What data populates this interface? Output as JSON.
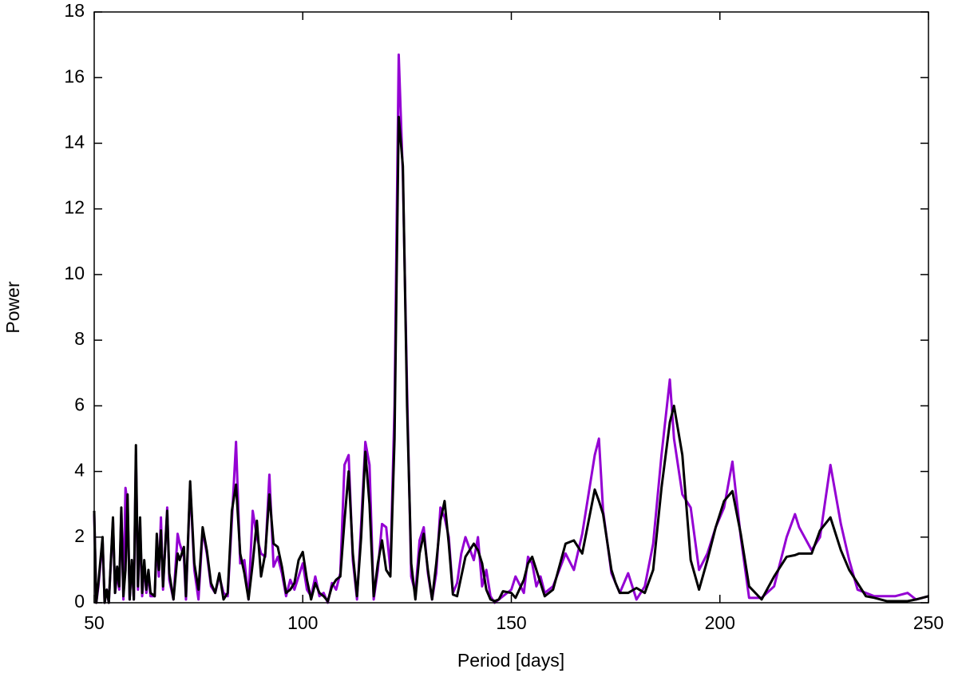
{
  "chart_data": {
    "type": "line",
    "xlabel": "Period [days]",
    "ylabel": "Power",
    "xlim": [
      50,
      250
    ],
    "ylim": [
      0,
      18
    ],
    "xticks": [
      50,
      100,
      150,
      200,
      250
    ],
    "yticks": [
      0,
      2,
      4,
      6,
      8,
      10,
      12,
      14,
      16,
      18
    ],
    "grid": false,
    "x": [
      50,
      50.5,
      51,
      52,
      52.5,
      53,
      53.5,
      54.5,
      55,
      55.5,
      56,
      56.5,
      57,
      57.5,
      58,
      58.5,
      59,
      59.5,
      60,
      60.5,
      61,
      61.5,
      62,
      62.5,
      63,
      63.5,
      64.5,
      65,
      65.5,
      66,
      66.5,
      67.5,
      68,
      69,
      70,
      70.5,
      71.5,
      72,
      73,
      74,
      75,
      76,
      77,
      78,
      79,
      80,
      81,
      82,
      83,
      84,
      85,
      86,
      87,
      88,
      89,
      90,
      91,
      92,
      93,
      94,
      95,
      96,
      97,
      98,
      99,
      100,
      101,
      102,
      103,
      104,
      105,
      106,
      107,
      108,
      109,
      110,
      111,
      112,
      113,
      114,
      115,
      116,
      117,
      118,
      119,
      120,
      121,
      122,
      123,
      124,
      125,
      126,
      127,
      128,
      129,
      130,
      131,
      132,
      133,
      134,
      135,
      136,
      137,
      138,
      139,
      141,
      142,
      143,
      144,
      145,
      146,
      147,
      148,
      150,
      151,
      153,
      154,
      155,
      156,
      157,
      158,
      160,
      163,
      165,
      167,
      170,
      171,
      172,
      174,
      175,
      176,
      178,
      180,
      182,
      184,
      186,
      188,
      189,
      191,
      193,
      195,
      197,
      199,
      201,
      203,
      205,
      207,
      210,
      213,
      216,
      218,
      219,
      222,
      224,
      226.5,
      229,
      231,
      233,
      235,
      237,
      240,
      242,
      245,
      247,
      250
    ],
    "series": [
      {
        "color": "#9400d3",
        "values": [
          2.7,
          0,
          0.5,
          1.9,
          0,
          0.4,
          0,
          2.5,
          0.3,
          0.9,
          0.4,
          2.8,
          0.1,
          3.5,
          3.0,
          0.1,
          1.2,
          0.1,
          4.5,
          0.4,
          2.4,
          0.2,
          1.2,
          0.3,
          0.9,
          0.2,
          0.2,
          1.9,
          0.8,
          2.6,
          0.4,
          2.9,
          0.7,
          0.1,
          2.1,
          1.8,
          1.4,
          0.1,
          3.6,
          1.0,
          0.1,
          2.2,
          1.5,
          0.5,
          0.3,
          0.8,
          0.3,
          0.2,
          2.5,
          4.9,
          1.2,
          1.3,
          0.1,
          2.8,
          2.0,
          1.5,
          1.4,
          3.9,
          1.1,
          1.4,
          0.9,
          0.2,
          0.7,
          0.4,
          0.8,
          1.2,
          0.4,
          0.2,
          0.8,
          0.2,
          0.3,
          0.0,
          0.6,
          0.4,
          0.9,
          4.2,
          4.5,
          1.3,
          0.1,
          2.4,
          4.9,
          4.2,
          0.1,
          1.0,
          2.4,
          2.3,
          1.0,
          6.0,
          16.7,
          13.0,
          6.5,
          0.8,
          0.3,
          1.9,
          2.3,
          0.9,
          0.1,
          0.9,
          2.9,
          2.6,
          2.0,
          0.3,
          0.6,
          1.5,
          2.0,
          1.3,
          2.0,
          0.5,
          1.0,
          0.2,
          0.0,
          0.1,
          0.2,
          0.4,
          0.8,
          0.3,
          1.4,
          1.2,
          0.5,
          0.8,
          0.3,
          0.5,
          1.5,
          1.0,
          2.1,
          4.5,
          5.0,
          2.8,
          0.9,
          0.6,
          0.3,
          0.9,
          0.1,
          0.5,
          1.8,
          4.5,
          6.8,
          5.0,
          3.3,
          2.9,
          1.0,
          1.5,
          2.3,
          2.9,
          4.3,
          2.0,
          0.15,
          0.15,
          0.5,
          2.0,
          2.7,
          2.3,
          1.6,
          2.0,
          4.2,
          2.4,
          1.3,
          0.4,
          0.3,
          0.2,
          0.2,
          0.2,
          0.3,
          0.1,
          0.2
        ]
      },
      {
        "color": "#000000",
        "values": [
          2.8,
          0,
          0.6,
          2.0,
          0,
          0.4,
          0,
          2.6,
          0.3,
          1.1,
          0.5,
          2.9,
          0.2,
          1.0,
          3.3,
          0.1,
          1.3,
          0.1,
          4.8,
          0.5,
          2.6,
          0.3,
          1.3,
          0.4,
          1.0,
          0.3,
          0.2,
          2.1,
          1.0,
          2.2,
          0.5,
          2.8,
          0.9,
          0.1,
          1.5,
          1.3,
          1.7,
          0.2,
          3.7,
          1.2,
          0.4,
          2.3,
          1.6,
          0.6,
          0.3,
          0.9,
          0.1,
          0.3,
          2.8,
          3.6,
          1.5,
          0.9,
          0.1,
          1.2,
          2.5,
          0.8,
          1.5,
          3.3,
          1.8,
          1.7,
          1.1,
          0.3,
          0.4,
          0.6,
          1.3,
          1.55,
          0.7,
          0.1,
          0.6,
          0.3,
          0.2,
          0.05,
          0.5,
          0.7,
          0.8,
          2.5,
          4.0,
          1.5,
          0.2,
          2.0,
          4.6,
          3.0,
          0.2,
          1.2,
          1.9,
          1.0,
          0.8,
          5.0,
          14.8,
          13.3,
          6.0,
          1.2,
          0.1,
          1.5,
          2.1,
          1.0,
          0.1,
          1.2,
          2.5,
          3.1,
          1.8,
          0.25,
          0.2,
          0.8,
          1.4,
          1.8,
          1.6,
          1.2,
          0.4,
          0.1,
          0.05,
          0.1,
          0.35,
          0.3,
          0.15,
          0.7,
          1.2,
          1.4,
          1.0,
          0.6,
          0.2,
          0.4,
          1.8,
          1.9,
          1.5,
          3.45,
          3.1,
          2.7,
          1.0,
          0.6,
          0.3,
          0.3,
          0.45,
          0.3,
          1.0,
          3.5,
          5.5,
          6.0,
          4.5,
          1.3,
          0.4,
          1.3,
          2.3,
          3.1,
          3.4,
          2.1,
          0.5,
          0.1,
          0.8,
          1.4,
          1.45,
          1.5,
          1.5,
          2.2,
          2.6,
          1.6,
          1.0,
          0.6,
          0.2,
          0.15,
          0.05,
          0.05,
          0.05,
          0.1,
          0.2
        ]
      }
    ]
  }
}
